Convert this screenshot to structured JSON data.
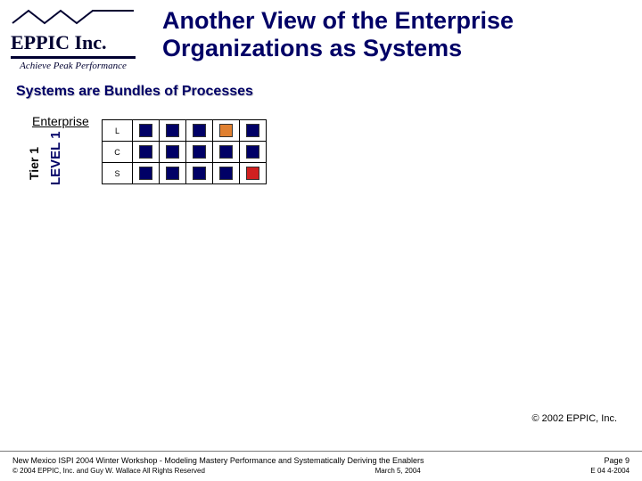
{
  "logo": {
    "company": "EPPIC Inc.",
    "tagline": "Achieve Peak Performance",
    "zigzag_color": "#000030"
  },
  "title_line1": "Another View of the Enterprise",
  "title_line2": "Organizations as Systems",
  "subtitle": "Systems are Bundles of Processes",
  "diagram": {
    "enterprise_label": "Enterprise",
    "tier_label": "Tier 1",
    "level_label": "LEVEL 1",
    "rows": [
      {
        "label": "L",
        "colors": [
          "#000066",
          "#000066",
          "#000066",
          "#e08030",
          "#000066"
        ]
      },
      {
        "label": "C",
        "colors": [
          "#000066",
          "#000066",
          "#000066",
          "#000066",
          "#000066"
        ]
      },
      {
        "label": "S",
        "colors": [
          "#000066",
          "#000066",
          "#000066",
          "#000066",
          "#d02020"
        ]
      }
    ]
  },
  "copyright_mid": "© 2002 EPPIC, Inc.",
  "footer": {
    "left1": "New Mexico ISPI 2004 Winter Workshop  -  Modeling Mastery Performance and Systematically Deriving the Enablers",
    "left2": "© 2004 EPPIC, Inc. and Guy W. Wallace    All Rights Reserved",
    "date_short": "March 5, 2004",
    "code": "E 04  4-2004",
    "page": "Page 9"
  },
  "colors": {
    "title": "#000066",
    "border": "#000000"
  }
}
